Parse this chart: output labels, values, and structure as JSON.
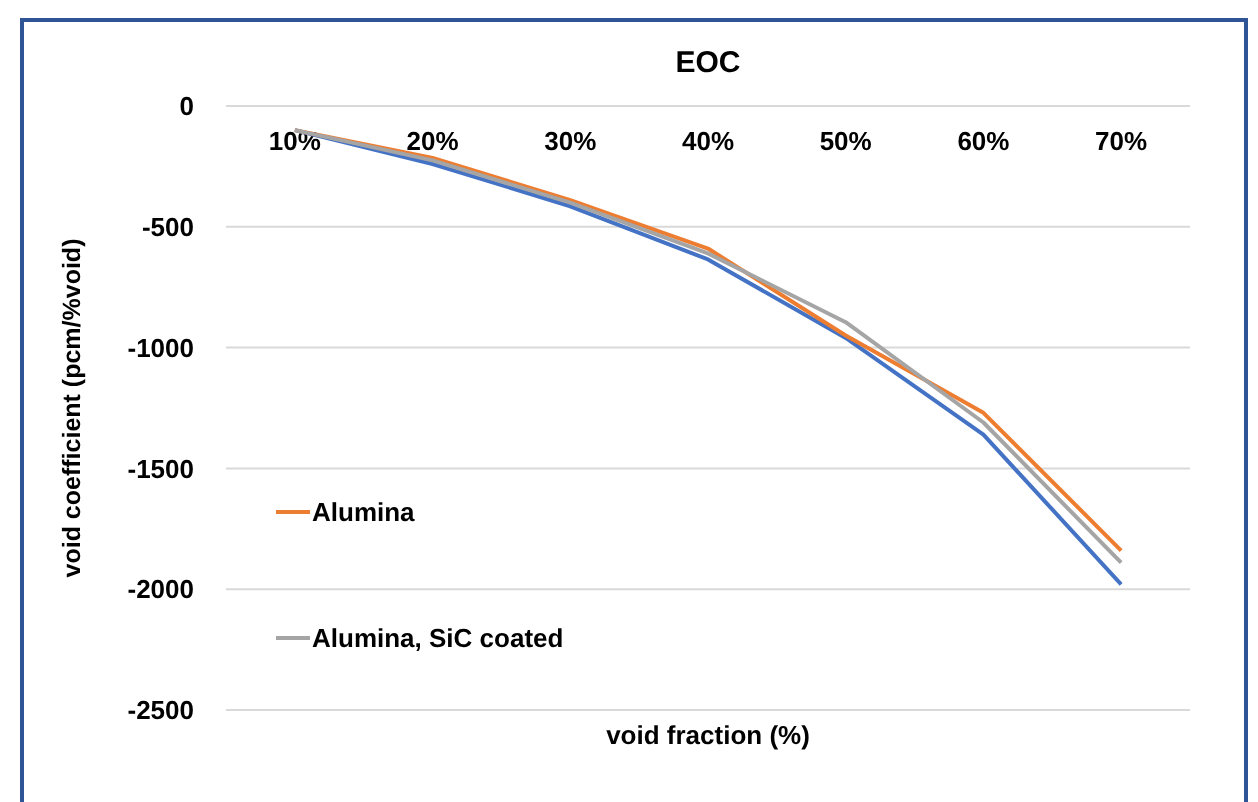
{
  "chart_data": {
    "type": "line",
    "title": "EOC",
    "xlabel": "void fraction (%)",
    "ylabel": "void coefficient (pcm/%void)",
    "categories": [
      "10%",
      "20%",
      "30%",
      "40%",
      "50%",
      "60%",
      "70%"
    ],
    "series": [
      {
        "color": "#4472c4",
        "values": [
          -100,
          -240,
          -415,
          -635,
          -960,
          -1360,
          -1980
        ]
      },
      {
        "name": "Alumina",
        "color": "#ed7d31",
        "values": [
          -100,
          -215,
          -390,
          -590,
          -950,
          -1270,
          -1840
        ]
      },
      {
        "name": "Alumina, SiC coated",
        "color": "#a5a5a5",
        "values": [
          -100,
          -225,
          -400,
          -610,
          -895,
          -1310,
          -1890
        ]
      }
    ],
    "ylim": [
      -2500,
      0
    ],
    "yticks": [
      0,
      -500,
      -1000,
      -1500,
      -2000,
      -2500
    ],
    "grid": "y",
    "legend": "left",
    "marker": "none",
    "line_style": "solid"
  }
}
